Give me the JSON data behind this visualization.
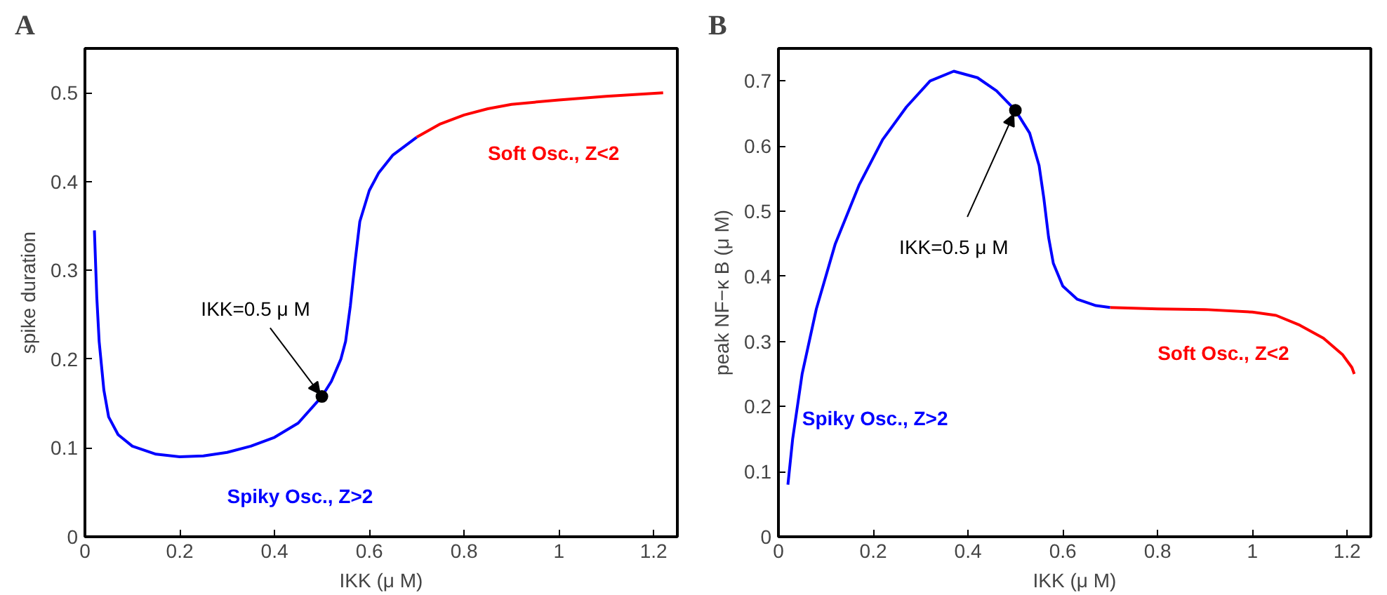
{
  "chart_data": [
    {
      "type": "line",
      "title": "A",
      "xlabel": "IKK (μ M)",
      "ylabel": "spike duration",
      "xlim": [
        0,
        1.25
      ],
      "ylim": [
        0,
        0.55
      ],
      "xticks": [
        0,
        0.2,
        0.4,
        0.6,
        0.8,
        1,
        1.2
      ],
      "yticks": [
        0,
        0.1,
        0.2,
        0.3,
        0.4,
        0.5
      ],
      "grid": false,
      "marker": "none",
      "line_style": "solid",
      "series": [
        {
          "color": "#0000ff",
          "x": [
            0.02,
            0.025,
            0.03,
            0.04,
            0.05,
            0.07,
            0.1,
            0.15,
            0.2,
            0.25,
            0.3,
            0.35,
            0.4,
            0.45,
            0.5,
            0.52,
            0.54,
            0.55,
            0.56,
            0.57,
            0.58,
            0.6,
            0.62,
            0.65,
            0.7
          ],
          "values": [
            0.345,
            0.27,
            0.22,
            0.165,
            0.135,
            0.115,
            0.102,
            0.093,
            0.09,
            0.091,
            0.095,
            0.102,
            0.112,
            0.128,
            0.158,
            0.175,
            0.2,
            0.22,
            0.26,
            0.31,
            0.355,
            0.39,
            0.41,
            0.43,
            0.45
          ]
        },
        {
          "color": "#ff0000",
          "x": [
            0.7,
            0.75,
            0.8,
            0.85,
            0.9,
            1.0,
            1.1,
            1.22
          ],
          "values": [
            0.45,
            0.465,
            0.475,
            0.482,
            0.487,
            0.492,
            0.496,
            0.5
          ]
        },
        {
          "type": "scatter",
          "color": "#000000",
          "marker": "circle",
          "x": [
            0.5
          ],
          "values": [
            0.158
          ]
        }
      ],
      "annotations": [
        {
          "text": "IKK=0.5 μ M",
          "x": 0.5,
          "y": 0.158
        },
        {
          "text": "Soft Osc., Z<2",
          "x": 0.85,
          "y": 0.482
        },
        {
          "text": "Spiky Osc., Z>2",
          "x": 0.3,
          "y": 0.095
        }
      ]
    },
    {
      "type": "line",
      "title": "B",
      "xlabel": "IKK (μ M)",
      "ylabel": "peak NF−κ B (μ M)",
      "xlim": [
        0,
        1.25
      ],
      "ylim": [
        0,
        0.75
      ],
      "xticks": [
        0,
        0.2,
        0.4,
        0.6,
        0.8,
        1,
        1.2
      ],
      "yticks": [
        0,
        0.1,
        0.2,
        0.3,
        0.4,
        0.5,
        0.6,
        0.7
      ],
      "grid": false,
      "marker": "none",
      "line_style": "solid",
      "series": [
        {
          "color": "#0000ff",
          "x": [
            0.02,
            0.03,
            0.05,
            0.08,
            0.12,
            0.17,
            0.22,
            0.27,
            0.32,
            0.37,
            0.42,
            0.46,
            0.5,
            0.53,
            0.55,
            0.56,
            0.57,
            0.58,
            0.6,
            0.63,
            0.67,
            0.7
          ],
          "values": [
            0.08,
            0.15,
            0.25,
            0.35,
            0.45,
            0.54,
            0.61,
            0.66,
            0.7,
            0.715,
            0.705,
            0.685,
            0.655,
            0.62,
            0.57,
            0.52,
            0.46,
            0.42,
            0.385,
            0.365,
            0.355,
            0.352
          ]
        },
        {
          "color": "#ff0000",
          "x": [
            0.7,
            0.8,
            0.9,
            1.0,
            1.05,
            1.1,
            1.15,
            1.19,
            1.21,
            1.215
          ],
          "values": [
            0.352,
            0.35,
            0.349,
            0.345,
            0.34,
            0.325,
            0.305,
            0.28,
            0.26,
            0.25
          ]
        },
        {
          "type": "scatter",
          "color": "#000000",
          "marker": "circle",
          "x": [
            0.5
          ],
          "values": [
            0.655
          ]
        }
      ],
      "annotations": [
        {
          "text": "IKK=0.5 μ M",
          "x": 0.5,
          "y": 0.655
        },
        {
          "text": "Soft Osc., Z<2",
          "x": 0.8,
          "y": 0.35
        },
        {
          "text": "Spiky Osc., Z>2",
          "x": 0.05,
          "y": 0.25
        }
      ]
    }
  ]
}
